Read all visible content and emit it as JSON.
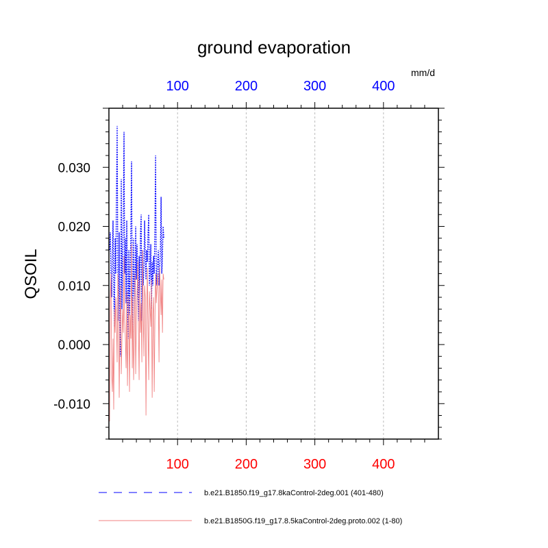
{
  "chart_data": {
    "type": "line",
    "title": "ground evaporation",
    "ylabel": "QSOIL",
    "units": "mm/d",
    "xlim": [
      0,
      480
    ],
    "ylim": [
      -0.016,
      0.04
    ],
    "x_ticks": [
      100,
      200,
      300,
      400
    ],
    "x_tick_labels": [
      "100",
      "200",
      "300",
      "400"
    ],
    "y_ticks": [
      -0.01,
      0.0,
      0.01,
      0.02,
      0.03
    ],
    "y_tick_labels": [
      "-0.010",
      "0.000",
      "0.010",
      "0.020",
      "0.030"
    ],
    "grid": "vertical dashed at major x ticks",
    "legend_position": "bottom",
    "top_axis_color": "#0000ff",
    "bottom_axis_color": "#ff0000",
    "series": [
      {
        "name": "b.e21.B1850.f19_g17.8kaControl-2deg.001 (401-480)",
        "color": "#0000ff",
        "dash": "dashed",
        "x": [
          1,
          2,
          3,
          4,
          5,
          6,
          7,
          8,
          9,
          10,
          11,
          12,
          13,
          14,
          15,
          16,
          17,
          18,
          19,
          20,
          21,
          22,
          23,
          24,
          25,
          26,
          27,
          28,
          29,
          30,
          31,
          32,
          33,
          34,
          35,
          36,
          37,
          38,
          39,
          40,
          41,
          42,
          43,
          44,
          45,
          46,
          47,
          48,
          49,
          50,
          51,
          52,
          53,
          54,
          55,
          56,
          57,
          58,
          59,
          60,
          61,
          62,
          63,
          64,
          65,
          66,
          67,
          68,
          69,
          70,
          71,
          72,
          73,
          74,
          75,
          76,
          77,
          78,
          79,
          80
        ],
        "values": [
          0.016,
          0.019,
          0.012,
          0.008,
          0.015,
          0.021,
          0.01,
          0.003,
          0.018,
          0.012,
          0.025,
          0.037,
          0.012,
          0.004,
          0.019,
          0.001,
          -0.002,
          0.028,
          0.006,
          0.014,
          0.022,
          0.036,
          0.012,
          0.018,
          0.007,
          0.021,
          0.009,
          0.001,
          0.016,
          0.005,
          0.012,
          0.02,
          0.031,
          0.007,
          0.002,
          0.018,
          0.01,
          0.006,
          0.02,
          0.011,
          0.017,
          0.009,
          0.004,
          0.015,
          0.008,
          0.019,
          0.022,
          0.004,
          0.016,
          0.01,
          0.013,
          0.021,
          0.015,
          0.011,
          0.016,
          0.014,
          0.019,
          0.022,
          0.01,
          0.012,
          0.017,
          0.006,
          0.014,
          0.01,
          0.015,
          0.012,
          0.02,
          0.032,
          0.01,
          0.012,
          0.014,
          0.016,
          0.01,
          0.013,
          0.016,
          0.025,
          0.012,
          0.015,
          0.02,
          0.018
        ]
      },
      {
        "name": "b.e21.B1850G.f19_g17.8.5kaControl-2deg.proto.002 (1-80)",
        "color": "#f08080",
        "dash": "solid",
        "x": [
          1,
          2,
          3,
          4,
          5,
          6,
          7,
          8,
          9,
          10,
          11,
          12,
          13,
          14,
          15,
          16,
          17,
          18,
          19,
          20,
          21,
          22,
          23,
          24,
          25,
          26,
          27,
          28,
          29,
          30,
          31,
          32,
          33,
          34,
          35,
          36,
          37,
          38,
          39,
          40,
          41,
          42,
          43,
          44,
          45,
          46,
          47,
          48,
          49,
          50,
          51,
          52,
          53,
          54,
          55,
          56,
          57,
          58,
          59,
          60,
          61,
          62,
          63,
          64,
          65,
          66,
          67,
          68,
          69,
          70,
          71,
          72,
          73,
          74,
          75,
          76,
          77,
          78,
          79,
          80
        ],
        "values": [
          -0.013,
          0.008,
          0.012,
          -0.005,
          -0.008,
          0.001,
          -0.011,
          0.006,
          0.002,
          0.008,
          0.004,
          -0.003,
          0.012,
          0.007,
          -0.009,
          0.003,
          0.01,
          -0.005,
          0.001,
          0.006,
          0.002,
          0.015,
          0.004,
          0.001,
          -0.004,
          0.009,
          -0.007,
          0.003,
          0.008,
          -0.008,
          0.005,
          0.001,
          0.017,
          -0.004,
          0.008,
          -0.006,
          0.002,
          0.012,
          -0.005,
          0.004,
          0.009,
          0.014,
          0.003,
          -0.006,
          0.011,
          0.002,
          0.007,
          -0.003,
          0.016,
          0.005,
          -0.002,
          0.01,
          0.008,
          -0.012,
          0.004,
          0.013,
          0.003,
          -0.006,
          0.009,
          0.006,
          0.003,
          0.011,
          -0.009,
          0.005,
          0.008,
          -0.008,
          0.004,
          0.012,
          0.007,
          0.01,
          0.012,
          0.008,
          -0.003,
          0.013,
          0.009,
          0.005,
          0.011,
          0.002,
          0.012,
          0.011
        ]
      }
    ]
  }
}
